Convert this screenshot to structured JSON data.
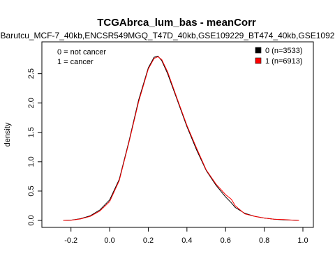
{
  "chart_data": {
    "type": "line",
    "title": "TCGAbrca_lum_bas - meanCorr",
    "subtitle": "Barutcu_MCF-7_40kb,ENCSR549MGQ_T47D_40kb,GSE109229_BT474_40kb,GSE1092",
    "xlabel": "",
    "ylabel": "density",
    "xlim": [
      -0.3,
      1.0
    ],
    "ylim": [
      0,
      2.9
    ],
    "xticks": [
      "-0.2",
      "0.0",
      "0.2",
      "0.4",
      "0.6",
      "0.8",
      "1.0"
    ],
    "yticks": [
      "0.0",
      "0.5",
      "1.0",
      "1.5",
      "2.0",
      "2.5"
    ],
    "annotations": [
      "0 = not cancer",
      "1 = cancer"
    ],
    "legend_position": "top-right",
    "grid": false,
    "series": [
      {
        "name": "0 (n=3533)",
        "color": "#000000",
        "x": [
          -0.24,
          -0.2,
          -0.15,
          -0.1,
          -0.05,
          0.0,
          0.05,
          0.1,
          0.15,
          0.2,
          0.23,
          0.25,
          0.27,
          0.3,
          0.35,
          0.4,
          0.45,
          0.5,
          0.55,
          0.6,
          0.63,
          0.65,
          0.7,
          0.75,
          0.8,
          0.85,
          0.9,
          0.95,
          0.98
        ],
        "values": [
          0.0,
          0.005,
          0.03,
          0.08,
          0.18,
          0.35,
          0.7,
          1.35,
          2.05,
          2.6,
          2.78,
          2.8,
          2.72,
          2.5,
          2.05,
          1.6,
          1.2,
          0.85,
          0.6,
          0.4,
          0.3,
          0.22,
          0.12,
          0.07,
          0.04,
          0.02,
          0.01,
          0.005,
          0.0
        ]
      },
      {
        "name": "1 (n=6913)",
        "color": "#ff0000",
        "x": [
          -0.24,
          -0.2,
          -0.15,
          -0.1,
          -0.05,
          0.0,
          0.05,
          0.1,
          0.15,
          0.2,
          0.23,
          0.25,
          0.27,
          0.3,
          0.35,
          0.4,
          0.45,
          0.5,
          0.55,
          0.6,
          0.63,
          0.65,
          0.7,
          0.75,
          0.8,
          0.85,
          0.9,
          0.95,
          0.98
        ],
        "values": [
          0.0,
          0.004,
          0.025,
          0.07,
          0.16,
          0.32,
          0.68,
          1.33,
          2.02,
          2.58,
          2.76,
          2.79,
          2.74,
          2.53,
          2.07,
          1.62,
          1.23,
          0.86,
          0.62,
          0.44,
          0.36,
          0.25,
          0.11,
          0.07,
          0.04,
          0.02,
          0.015,
          0.005,
          0.0
        ]
      }
    ]
  }
}
